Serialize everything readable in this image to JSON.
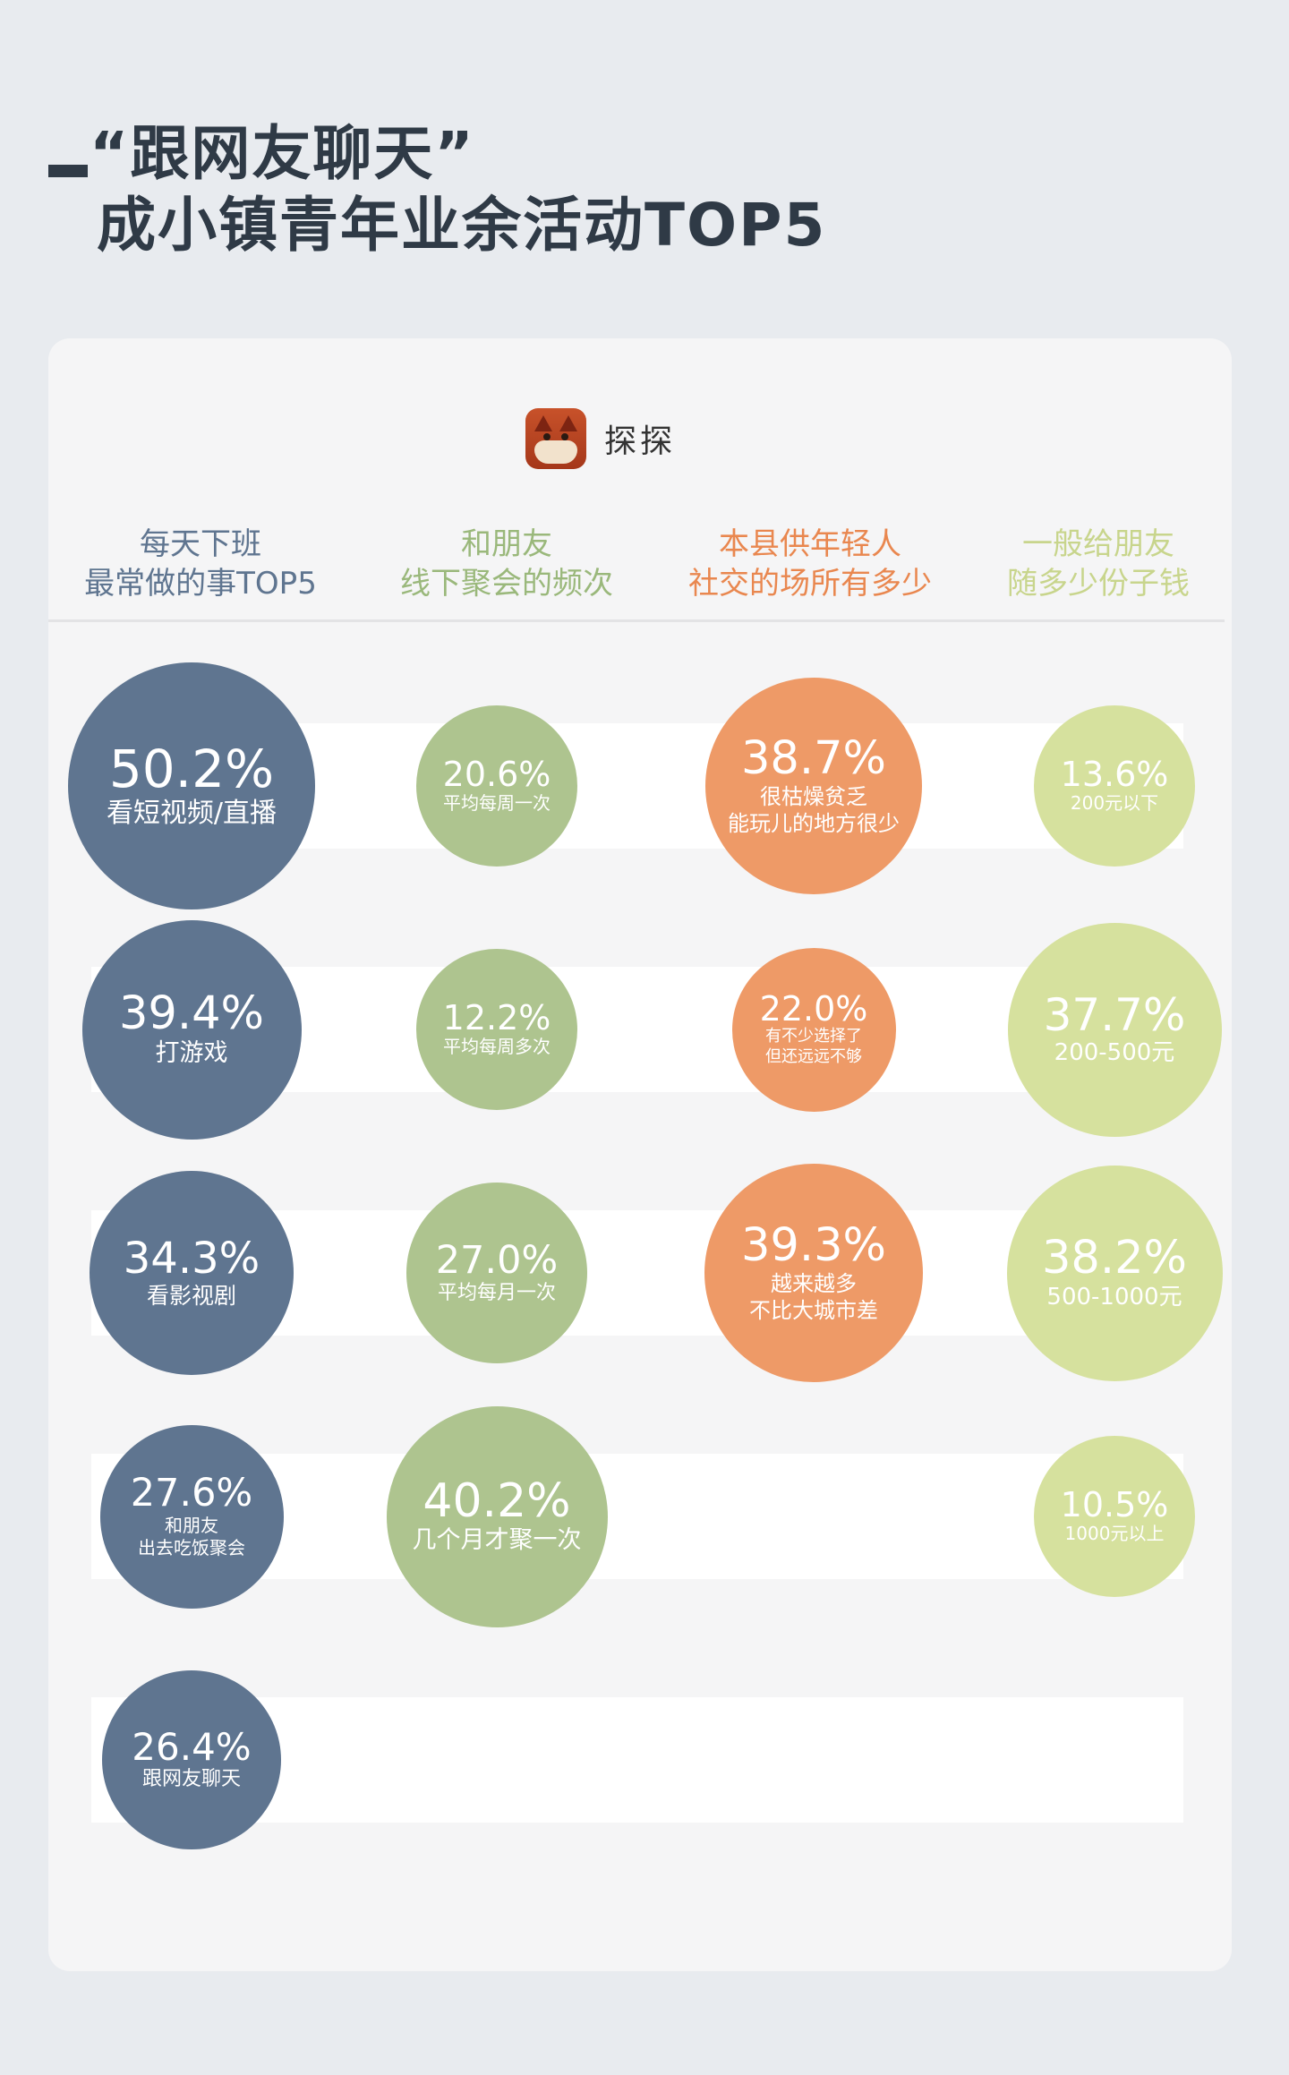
{
  "title": {
    "line1": "“跟网友聊天”",
    "line2": "成小镇青年业余活动TOP5"
  },
  "brand": {
    "name": "探探",
    "icon": "fox-app-icon"
  },
  "colors": {
    "col1": "#5f7590",
    "col2": "#aec48f",
    "col3": "#ee9a67",
    "col4": "#d6e19e",
    "head1": "#5f7590",
    "head2": "#9ab87b",
    "head3": "#e9874f",
    "head4": "#c8d58c"
  },
  "chart_data": {
    "type": "bubble-table",
    "columns": [
      {
        "header_line1": "每天下班",
        "header_line2": "最常做的事TOP5",
        "items": [
          {
            "value": "50.2%",
            "label": "看短视频/直播"
          },
          {
            "value": "39.4%",
            "label": "打游戏"
          },
          {
            "value": "34.3%",
            "label": "看影视剧"
          },
          {
            "value": "27.6%",
            "label": "和朋友\n出去吃饭聚会"
          },
          {
            "value": "26.4%",
            "label": "跟网友聊天"
          }
        ]
      },
      {
        "header_line1": "和朋友",
        "header_line2": "线下聚会的频次",
        "items": [
          {
            "value": "20.6%",
            "label": "平均每周一次"
          },
          {
            "value": "12.2%",
            "label": "平均每周多次"
          },
          {
            "value": "27.0%",
            "label": "平均每月一次"
          },
          {
            "value": "40.2%",
            "label": "几个月才聚一次"
          }
        ]
      },
      {
        "header_line1": "本县供年轻人",
        "header_line2": "社交的场所有多少",
        "items": [
          {
            "value": "38.7%",
            "label": "很枯燥贫乏\n能玩儿的地方很少"
          },
          {
            "value": "22.0%",
            "label": "有不少选择了\n但还远远不够"
          },
          {
            "value": "39.3%",
            "label": "越来越多\n不比大城市差"
          }
        ]
      },
      {
        "header_line1": "一般给朋友",
        "header_line2": "随多少份子钱",
        "items": [
          {
            "value": "13.6%",
            "label": "200元以下"
          },
          {
            "value": "37.7%",
            "label": "200-500元"
          },
          {
            "value": "38.2%",
            "label": "500-1000元"
          },
          {
            "value": "10.5%",
            "label": "1000元以上"
          }
        ]
      }
    ]
  }
}
